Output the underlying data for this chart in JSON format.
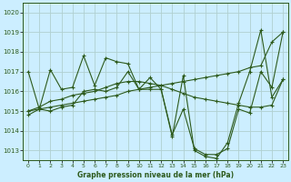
{
  "title": "Graphe pression niveau de la mer (hPa)",
  "bg_color": "#cceeff",
  "grid_color": "#b0d0d0",
  "line_color": "#2d5a1b",
  "ylim": [
    1012.5,
    1020.5
  ],
  "xlim": [
    -0.5,
    23.5
  ],
  "yticks": [
    1013,
    1014,
    1015,
    1016,
    1017,
    1018,
    1019,
    1020
  ],
  "xticks": [
    0,
    1,
    2,
    3,
    4,
    5,
    6,
    7,
    8,
    9,
    10,
    11,
    12,
    13,
    14,
    15,
    16,
    17,
    18,
    19,
    20,
    21,
    22,
    23
  ],
  "series": [
    [
      1014.8,
      1015.1,
      1015.0,
      1015.2,
      1015.3,
      1016.0,
      1016.1,
      1016.0,
      1016.2,
      1017.0,
      1016.1,
      1016.7,
      1016.1,
      1013.8,
      1015.1,
      1013.1,
      1012.8,
      1012.8,
      1013.1,
      1015.1,
      1014.9,
      1017.0,
      1016.2,
      1019.0
    ],
    [
      1017.0,
      1015.1,
      1017.1,
      1016.1,
      1016.2,
      1017.8,
      1016.3,
      1017.7,
      1017.5,
      1017.4,
      1016.1,
      1016.1,
      1016.1,
      1013.7,
      1016.8,
      1013.0,
      1012.7,
      1012.6,
      1013.4,
      1015.4,
      1017.0,
      1019.1,
      1015.7,
      1016.6
    ],
    [
      1015.0,
      1015.2,
      1015.5,
      1015.6,
      1015.8,
      1015.9,
      1016.0,
      1016.2,
      1016.4,
      1016.5,
      1016.5,
      1016.4,
      1016.3,
      1016.1,
      1015.9,
      1015.7,
      1015.6,
      1015.5,
      1015.4,
      1015.3,
      1015.2,
      1015.2,
      1015.3,
      1016.6
    ],
    [
      1015.0,
      1015.1,
      1015.2,
      1015.3,
      1015.4,
      1015.5,
      1015.6,
      1015.7,
      1015.8,
      1016.0,
      1016.1,
      1016.2,
      1016.3,
      1016.4,
      1016.5,
      1016.6,
      1016.7,
      1016.8,
      1016.9,
      1017.0,
      1017.2,
      1017.3,
      1018.5,
      1019.0
    ]
  ]
}
